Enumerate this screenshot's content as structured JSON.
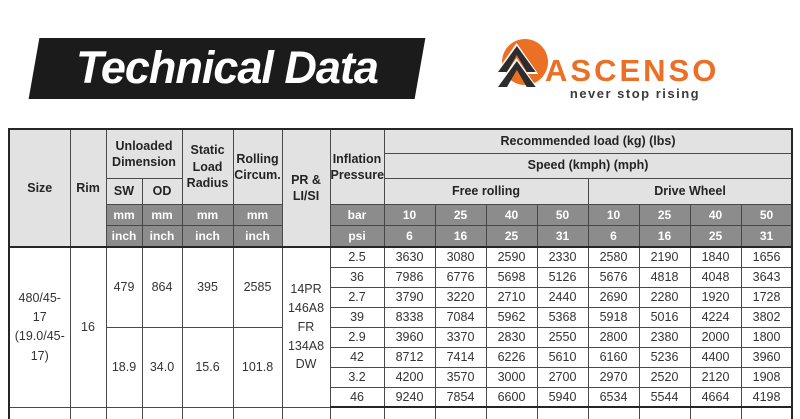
{
  "banner": {
    "title": "Technical Data"
  },
  "logo": {
    "brand": "ASCENSO",
    "tagline": "never stop rising",
    "colors": {
      "orange": "#ec6f26",
      "dark": "#2d2d30"
    }
  },
  "colors": {
    "banner_bg": "#1b1b1b",
    "header_bg": "#e2e2e2",
    "unit_row_bg": "#8c8c8c",
    "border": "#4a4a4a"
  },
  "table": {
    "headers": {
      "size": "Size",
      "rim": "Rim",
      "unloaded_dimension": "Unloaded Dimension",
      "sw": "SW",
      "od": "OD",
      "static_load_radius": "Static Load Radius",
      "rolling_circum": "Rolling Circum.",
      "pr_li_si": "PR & LI/SI",
      "inflation_pressure": "Inflation Pressure",
      "recommended_load": "Recommended load (kg) (lbs)",
      "speed": "Speed (kmph) (mph)",
      "free_rolling": "Free rolling",
      "drive_wheel": "Drive Wheel"
    },
    "units": {
      "mm": "mm",
      "inch": "inch",
      "bar": "bar",
      "psi": "psi"
    },
    "speed": {
      "kmph": [
        "10",
        "25",
        "40",
        "50"
      ],
      "mph": [
        "6",
        "16",
        "25",
        "31"
      ]
    },
    "body": {
      "size": "480/45-\n17\n(19.0/45-\n17)",
      "rim": "16",
      "pr_li_si": "14PR\n146A8\nFR\n134A8\nDW",
      "mm": {
        "sw": "479",
        "od": "864",
        "slr": "395",
        "rc": "2585"
      },
      "inch": {
        "sw": "18.9",
        "od": "34.0",
        "slr": "15.6",
        "rc": "101.8"
      },
      "rows": [
        {
          "pressure": "2.5",
          "values": [
            "3630",
            "3080",
            "2590",
            "2330",
            "2580",
            "2190",
            "1840",
            "1656"
          ]
        },
        {
          "pressure": "36",
          "values": [
            "7986",
            "6776",
            "5698",
            "5126",
            "5676",
            "4818",
            "4048",
            "3643"
          ]
        },
        {
          "pressure": "2.7",
          "values": [
            "3790",
            "3220",
            "2710",
            "2440",
            "2690",
            "2280",
            "1920",
            "1728"
          ]
        },
        {
          "pressure": "39",
          "values": [
            "8338",
            "7084",
            "5962",
            "5368",
            "5918",
            "5016",
            "4224",
            "3802"
          ]
        },
        {
          "pressure": "2.9",
          "values": [
            "3960",
            "3370",
            "2830",
            "2550",
            "2800",
            "2380",
            "2000",
            "1800"
          ]
        },
        {
          "pressure": "42",
          "values": [
            "8712",
            "7414",
            "6226",
            "5610",
            "6160",
            "5236",
            "4400",
            "3960"
          ]
        },
        {
          "pressure": "3.2",
          "values": [
            "4200",
            "3570",
            "3000",
            "2700",
            "2970",
            "2520",
            "2120",
            "1908"
          ]
        },
        {
          "pressure": "46",
          "values": [
            "9240",
            "7854",
            "6600",
            "5940",
            "6534",
            "5544",
            "4664",
            "4198"
          ]
        }
      ]
    }
  }
}
